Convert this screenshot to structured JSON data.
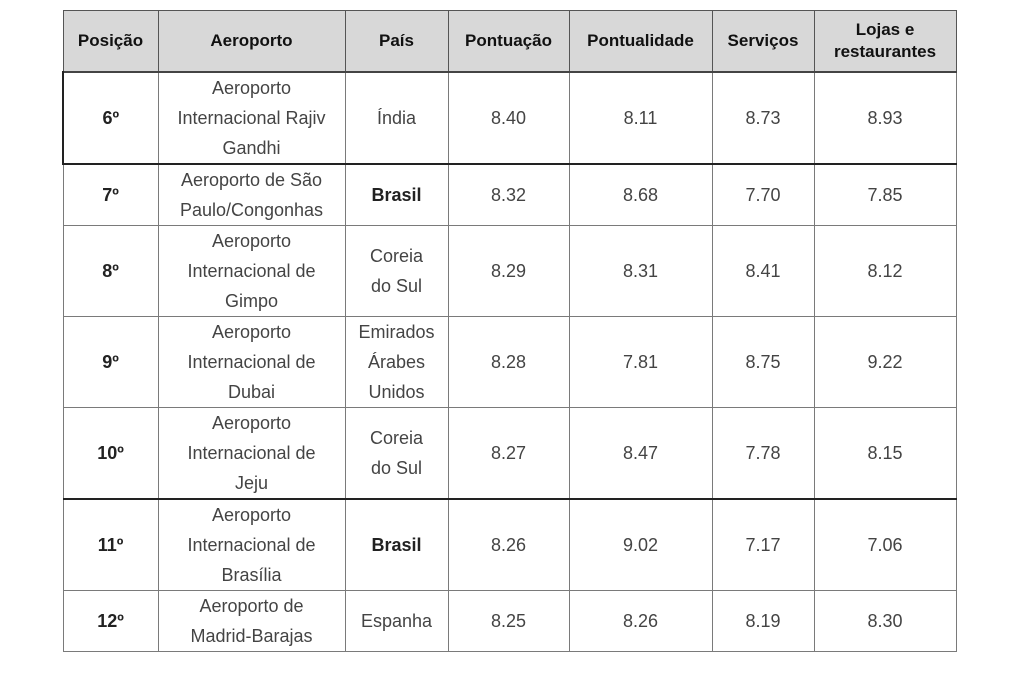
{
  "table": {
    "headers": {
      "position": "Posição",
      "airport": "Aeroporto",
      "country": "País",
      "score": "Pontuação",
      "punctuality": "Pontualidade",
      "services": "Serviços",
      "shops_line1": "Lojas e",
      "shops_line2": "restaurantes"
    },
    "rows": [
      {
        "position": "6º",
        "airport_lines": [
          "Aeroporto",
          "Internacional Rajiv",
          "Gandhi"
        ],
        "country_lines": [
          "Índia"
        ],
        "country_bold": false,
        "score": "8.40",
        "punctuality": "8.11",
        "services": "8.73",
        "shops": "8.93"
      },
      {
        "position": "7º",
        "airport_lines": [
          "Aeroporto de São",
          "Paulo/Congonhas"
        ],
        "country_lines": [
          "Brasil"
        ],
        "country_bold": true,
        "score": "8.32",
        "punctuality": "8.68",
        "services": "7.70",
        "shops": "7.85"
      },
      {
        "position": "8º",
        "airport_lines": [
          "Aeroporto",
          "Internacional de",
          "Gimpo"
        ],
        "country_lines": [
          "Coreia",
          "do Sul"
        ],
        "country_bold": false,
        "score": "8.29",
        "punctuality": "8.31",
        "services": "8.41",
        "shops": "8.12"
      },
      {
        "position": "9º",
        "airport_lines": [
          "Aeroporto",
          "Internacional de",
          "Dubai"
        ],
        "country_lines": [
          "Emirados",
          "Árabes",
          "Unidos"
        ],
        "country_bold": false,
        "score": "8.28",
        "punctuality": "7.81",
        "services": "8.75",
        "shops": "9.22"
      },
      {
        "position": "10º",
        "airport_lines": [
          "Aeroporto",
          "Internacional de",
          "Jeju"
        ],
        "country_lines": [
          "Coreia",
          "do Sul"
        ],
        "country_bold": false,
        "score": "8.27",
        "punctuality": "8.47",
        "services": "7.78",
        "shops": "8.15"
      },
      {
        "position": "11º",
        "airport_lines": [
          "Aeroporto",
          "Internacional de",
          "Brasília"
        ],
        "country_lines": [
          "Brasil"
        ],
        "country_bold": true,
        "score": "8.26",
        "punctuality": "9.02",
        "services": "7.17",
        "shops": "7.06"
      },
      {
        "position": "12º",
        "airport_lines": [
          "Aeroporto de",
          "Madrid-Barajas"
        ],
        "country_lines": [
          "Espanha"
        ],
        "country_bold": false,
        "score": "8.25",
        "punctuality": "8.26",
        "services": "8.19",
        "shops": "8.30"
      }
    ]
  }
}
